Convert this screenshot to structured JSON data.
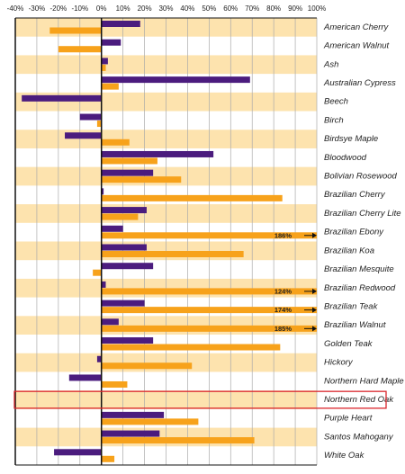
{
  "chart_data": {
    "type": "hbar",
    "categories": [
      "American Cherry",
      "American Walnut",
      "Ash",
      "Australian Cypress",
      "Beech",
      "Birch",
      "Birdsye Maple",
      "Bloodwood",
      "Bolivian Rosewood",
      "Brazilian Cherry",
      "Brazilian Cherry Lite",
      "Brazilian Ebony",
      "Brazilian Koa",
      "Brazilian Mesquite",
      "Brazilian Redwood",
      "Brazilian Teak",
      "Brazilian Walnut",
      "Golden Teak",
      "Hickory",
      "Northern Hard Maple",
      "Northern Red Oak",
      "Purple Heart",
      "Santos Mahogany",
      "White Oak"
    ],
    "series": [
      {
        "color": "#4b1c7e",
        "values": [
          18,
          9,
          3,
          69,
          -37,
          -10,
          -17,
          52,
          24,
          1,
          21,
          10,
          21,
          24,
          2,
          20,
          8,
          24,
          -2,
          -15,
          0,
          29,
          27,
          -22
        ]
      },
      {
        "color": "#f7a21b",
        "values": [
          -24,
          -20,
          2,
          8,
          0,
          -2,
          13,
          26,
          37,
          84,
          17,
          186,
          66,
          -4,
          124,
          174,
          185,
          83,
          42,
          12,
          0,
          45,
          71,
          6
        ],
        "value_labels": [
          null,
          null,
          null,
          null,
          null,
          null,
          null,
          null,
          null,
          null,
          null,
          "186%",
          null,
          null,
          "124%",
          "174%",
          "185%",
          null,
          null,
          null,
          null,
          null,
          null,
          null
        ]
      }
    ],
    "xlim": [
      -40,
      100
    ],
    "xticks": [
      {
        "value": -40,
        "label": "-40%"
      },
      {
        "value": -30,
        "label": "-30%"
      },
      {
        "value": -20,
        "label": "-20%"
      },
      {
        "value": -10,
        "label": "-10%"
      },
      {
        "value": 0,
        "label": "0%"
      },
      {
        "value": 10,
        "label": "10%"
      },
      {
        "value": 20,
        "label": "20%"
      },
      {
        "value": 30,
        "label": "30%"
      },
      {
        "value": 40,
        "label": "40%"
      },
      {
        "value": 50,
        "label": "50%"
      },
      {
        "value": 60,
        "label": "60%"
      },
      {
        "value": 70,
        "label": "70%"
      },
      {
        "value": 80,
        "label": "80%"
      },
      {
        "value": 90,
        "label": "90%"
      },
      {
        "value": 100,
        "label": "100%"
      }
    ],
    "grid": true,
    "band_color": "#fde3ae",
    "highlight": 20,
    "highlight_color": "#d9262c"
  }
}
